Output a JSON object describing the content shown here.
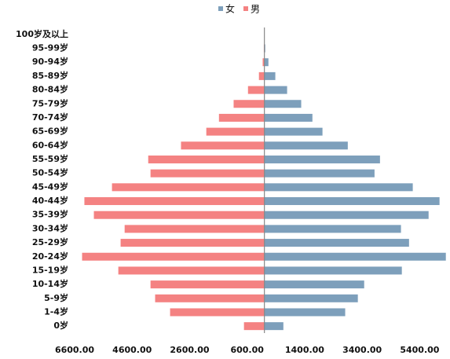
{
  "chart_data": {
    "type": "hbar-pyramid",
    "categories": [
      "100岁及以上",
      "95-99岁",
      "90-94岁",
      "85-89岁",
      "80-84岁",
      "75-79岁",
      "70-74岁",
      "65-69岁",
      "60-64岁",
      "55-59岁",
      "50-54岁",
      "45-49岁",
      "40-44岁",
      "35-39岁",
      "30-34岁",
      "25-29岁",
      "20-24岁",
      "15-19岁",
      "10-14岁",
      "5-9岁",
      "1-4岁",
      "0岁"
    ],
    "series": [
      {
        "name": "女",
        "color": "#7d9fbb",
        "values": [
          0,
          30,
          140,
          380,
          790,
          1280,
          1670,
          2020,
          2900,
          4020,
          3830,
          5160,
          6090,
          5710,
          4750,
          5030,
          6310,
          4780,
          3470,
          3250,
          2810,
          660
        ]
      },
      {
        "name": "男",
        "color": "#f48282",
        "values": [
          0,
          -20,
          -60,
          -190,
          -570,
          -1070,
          -1580,
          -2020,
          -2900,
          -4040,
          -3960,
          -5300,
          -6260,
          -5930,
          -4860,
          -5000,
          -6340,
          -5080,
          -3960,
          -3800,
          -3280,
          -710
        ]
      }
    ],
    "xlim": [
      -6600,
      6400
    ],
    "xticks": [
      {
        "value": -6600,
        "label": "6600.00"
      },
      {
        "value": -4600,
        "label": "4600.00"
      },
      {
        "value": -2600,
        "label": "2600.00"
      },
      {
        "value": -600,
        "label": "600.00"
      },
      {
        "value": 1400,
        "label": "1400.00"
      },
      {
        "value": 3400,
        "label": "3400.00"
      },
      {
        "value": 5400,
        "label": "5400.00"
      }
    ],
    "legend": "top"
  }
}
